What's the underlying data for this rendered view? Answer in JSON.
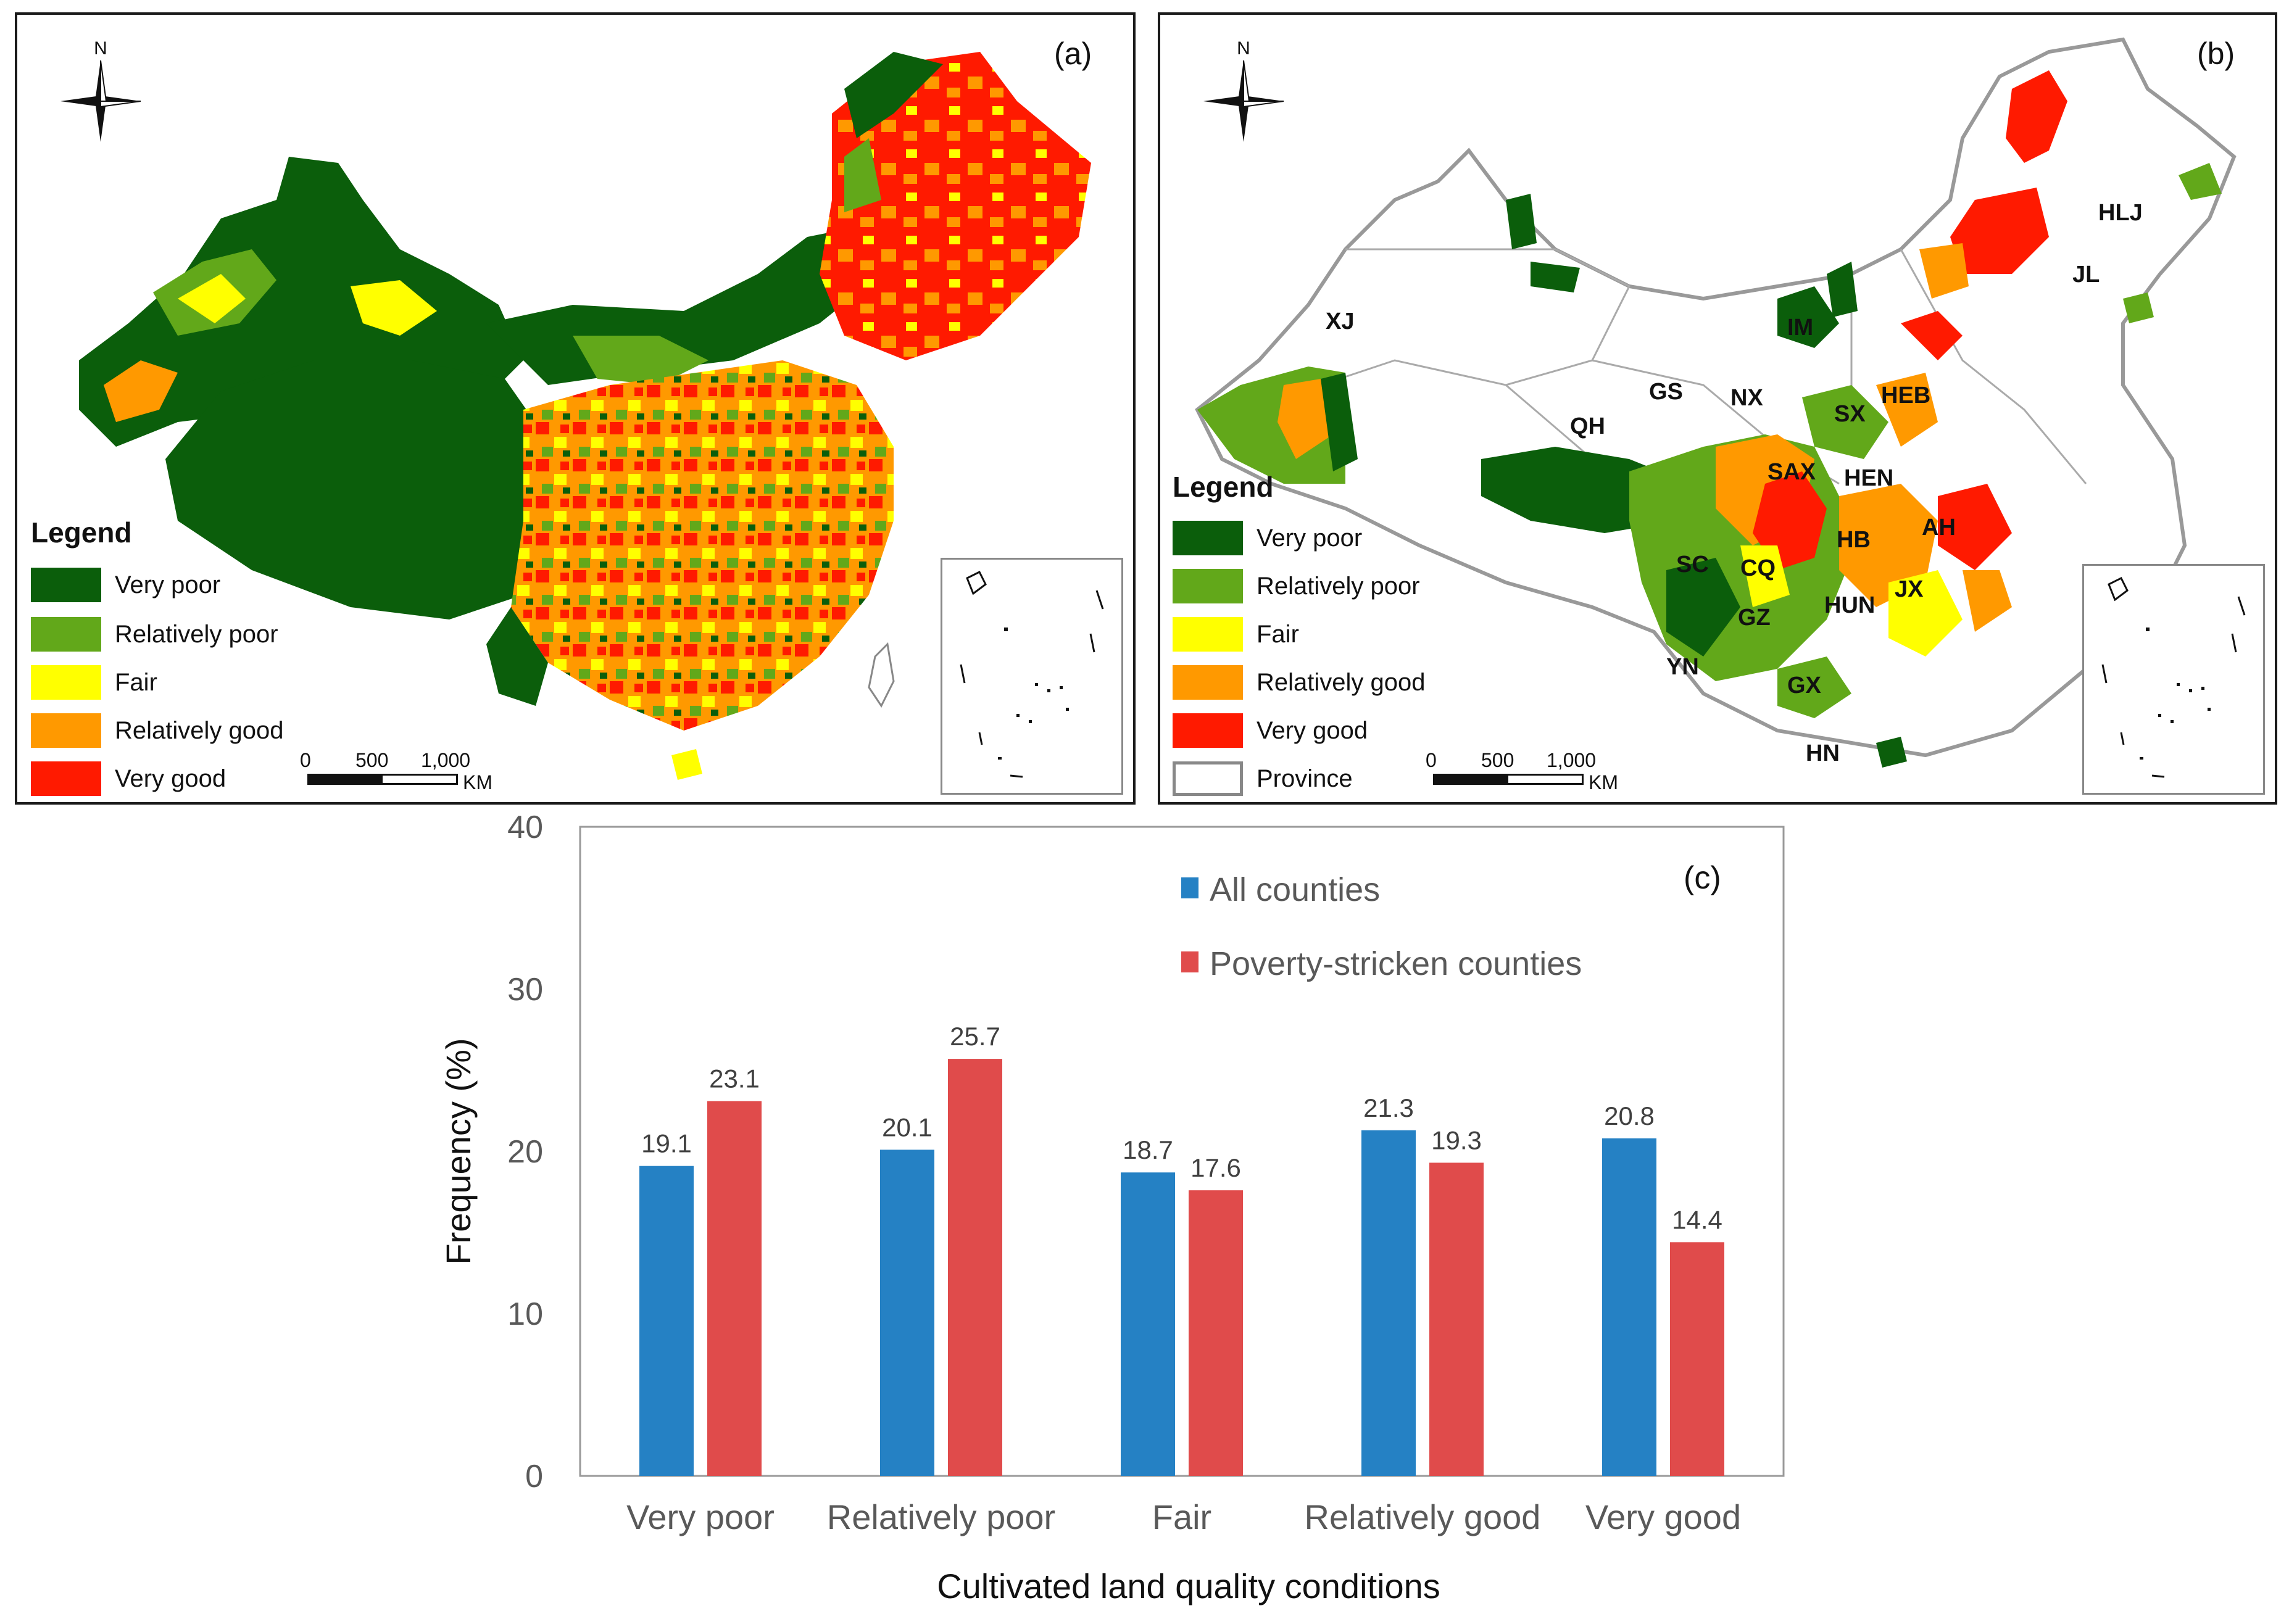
{
  "panel_a": {
    "label": "(a)",
    "compass_letter": "N",
    "legend": {
      "title": "Legend",
      "items": [
        {
          "label": "Very poor",
          "color": "#0b5e0b"
        },
        {
          "label": "Relatively poor",
          "color": "#62a81a"
        },
        {
          "label": "Fair",
          "color": "#ffff00"
        },
        {
          "label": "Relatively good",
          "color": "#ff9900"
        },
        {
          "label": "Very good",
          "color": "#ff1a00"
        }
      ]
    },
    "scale": {
      "ticks": [
        "0",
        "500",
        "1,000"
      ],
      "unit": "KM"
    }
  },
  "panel_b": {
    "label": "(b)",
    "compass_letter": "N",
    "legend": {
      "title": "Legend",
      "items": [
        {
          "label": "Very poor",
          "color": "#0b5e0b"
        },
        {
          "label": "Relatively poor",
          "color": "#62a81a"
        },
        {
          "label": "Fair",
          "color": "#ffff00"
        },
        {
          "label": "Relatively good",
          "color": "#ff9900"
        },
        {
          "label": "Very good",
          "color": "#ff1a00"
        },
        {
          "label": "Province",
          "color": "#ffffff"
        }
      ]
    },
    "scale": {
      "ticks": [
        "0",
        "500",
        "1,000"
      ],
      "unit": "KM"
    },
    "province_labels": [
      "XJ",
      "QH",
      "GS",
      "NX",
      "IM",
      "SX",
      "HEB",
      "HLJ",
      "JL",
      "SAX",
      "HEN",
      "SC",
      "CQ",
      "HB",
      "AH",
      "GZ",
      "HUN",
      "JX",
      "YN",
      "GX",
      "HN"
    ]
  },
  "chart_data": {
    "type": "bar",
    "label": "(c)",
    "categories": [
      "Very poor",
      "Relatively poor",
      "Fair",
      "Relatively good",
      "Very good"
    ],
    "series": [
      {
        "name": "All counties",
        "color": "#2581c4",
        "values": [
          19.1,
          20.1,
          18.7,
          21.3,
          20.8
        ]
      },
      {
        "name": "Poverty-stricken counties",
        "color": "#e04b4b",
        "values": [
          23.1,
          25.7,
          17.6,
          19.3,
          14.4
        ]
      }
    ],
    "title": "",
    "xlabel": "Cultivated land quality conditions",
    "ylabel": "Frequency (%)",
    "ylim": [
      0,
      40
    ],
    "yticks": [
      0,
      10,
      20,
      30,
      40
    ],
    "legend_position": "top-center",
    "grid": false
  }
}
